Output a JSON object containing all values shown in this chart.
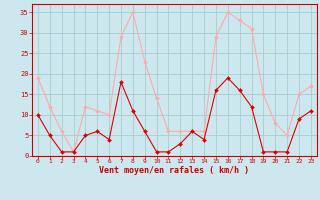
{
  "x": [
    0,
    1,
    2,
    3,
    4,
    5,
    6,
    7,
    8,
    9,
    10,
    11,
    12,
    13,
    14,
    15,
    16,
    17,
    18,
    19,
    20,
    21,
    22,
    23
  ],
  "rafales": [
    19,
    12,
    6,
    1,
    12,
    11,
    10,
    29,
    35,
    23,
    14,
    6,
    6,
    6,
    6,
    29,
    35,
    33,
    31,
    15,
    8,
    5,
    15,
    17
  ],
  "moyen": [
    10,
    5,
    1,
    1,
    5,
    6,
    4,
    18,
    11,
    6,
    1,
    1,
    3,
    6,
    4,
    16,
    19,
    16,
    12,
    1,
    1,
    1,
    9,
    11
  ],
  "bg_color": "#cce8ee",
  "grid_color": "#aacccc",
  "color_light": "#ffaaaa",
  "color_dark": "#dd0000",
  "xlabel": "Vent moyen/en rafales ( km/h )",
  "xlabel_color": "#cc0000",
  "tick_color": "#cc0000",
  "ylim": [
    0,
    37
  ],
  "yticks": [
    0,
    5,
    10,
    15,
    20,
    25,
    30,
    35
  ],
  "xlim": [
    -0.5,
    23.5
  ],
  "spine_color": "#cc0000"
}
